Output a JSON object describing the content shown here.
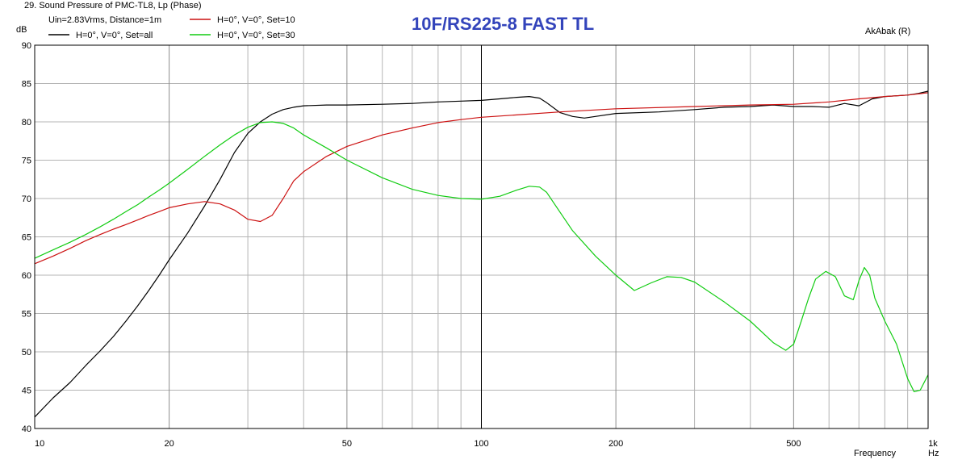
{
  "window_title": "29. Sound Pressure of PMC-TL8, Lp (Phase)",
  "overlay_title": "10F/RS225-8 FAST TL",
  "watermark": "AkAbak (R)",
  "legend": {
    "conditions": "Uin=2.83Vrms, Distance=1m"
  },
  "chart_data": {
    "type": "line",
    "title": "10F/RS225-8 FAST TL",
    "xlabel": "Frequency",
    "xunit": "Hz",
    "yunit": "dB",
    "xscale": "log",
    "xlim": [
      10,
      1000
    ],
    "ylim": [
      40,
      90
    ],
    "grid": true,
    "legend_position": "top-left",
    "x_ticks": [
      10,
      20,
      50,
      100,
      200,
      500,
      1000
    ],
    "x_tick_labels": [
      "10",
      "20",
      "50",
      "100",
      "200",
      "500",
      "1k"
    ],
    "x_minor": [
      30,
      40,
      60,
      70,
      80,
      90,
      300,
      400,
      600,
      700,
      800,
      900
    ],
    "y_ticks": [
      40,
      45,
      50,
      55,
      60,
      65,
      70,
      75,
      80,
      85,
      90
    ],
    "y_tick_labels": [
      "40",
      "45",
      "50",
      "55",
      "60",
      "65",
      "70",
      "75",
      "80",
      "85",
      "90"
    ],
    "series": [
      {
        "name": "H=0°, V=0°, Set=all",
        "color": "#000000",
        "points": [
          [
            10,
            41.5
          ],
          [
            11,
            44
          ],
          [
            12,
            46
          ],
          [
            13,
            48.2
          ],
          [
            14,
            50.1
          ],
          [
            15,
            52
          ],
          [
            16,
            54
          ],
          [
            17,
            56
          ],
          [
            18,
            58
          ],
          [
            19,
            60
          ],
          [
            20,
            62
          ],
          [
            22,
            65.5
          ],
          [
            24,
            69
          ],
          [
            26,
            72.5
          ],
          [
            28,
            76
          ],
          [
            30,
            78.5
          ],
          [
            32,
            80
          ],
          [
            34,
            81
          ],
          [
            36,
            81.6
          ],
          [
            38,
            81.9
          ],
          [
            40,
            82.1
          ],
          [
            45,
            82.2
          ],
          [
            50,
            82.2
          ],
          [
            60,
            82.3
          ],
          [
            70,
            82.4
          ],
          [
            80,
            82.6
          ],
          [
            90,
            82.7
          ],
          [
            100,
            82.8
          ],
          [
            110,
            83
          ],
          [
            120,
            83.2
          ],
          [
            128,
            83.3
          ],
          [
            135,
            83.1
          ],
          [
            140,
            82.5
          ],
          [
            150,
            81.2
          ],
          [
            160,
            80.7
          ],
          [
            170,
            80.5
          ],
          [
            180,
            80.7
          ],
          [
            200,
            81.1
          ],
          [
            250,
            81.3
          ],
          [
            300,
            81.6
          ],
          [
            350,
            81.9
          ],
          [
            400,
            82
          ],
          [
            450,
            82.2
          ],
          [
            500,
            82
          ],
          [
            550,
            82
          ],
          [
            600,
            81.9
          ],
          [
            650,
            82.4
          ],
          [
            700,
            82.1
          ],
          [
            750,
            83
          ],
          [
            800,
            83.3
          ],
          [
            900,
            83.5
          ],
          [
            950,
            83.7
          ],
          [
            1000,
            84
          ]
        ]
      },
      {
        "name": "H=0°, V=0°, Set=10",
        "color": "#cc1111",
        "points": [
          [
            10,
            61.5
          ],
          [
            11,
            62.5
          ],
          [
            12,
            63.5
          ],
          [
            13,
            64.5
          ],
          [
            14,
            65.3
          ],
          [
            15,
            66
          ],
          [
            16,
            66.6
          ],
          [
            17,
            67.2
          ],
          [
            18,
            67.8
          ],
          [
            19,
            68.3
          ],
          [
            20,
            68.8
          ],
          [
            22,
            69.3
          ],
          [
            24,
            69.6
          ],
          [
            26,
            69.3
          ],
          [
            28,
            68.5
          ],
          [
            30,
            67.3
          ],
          [
            32,
            67
          ],
          [
            34,
            67.8
          ],
          [
            36,
            70
          ],
          [
            38,
            72.3
          ],
          [
            40,
            73.5
          ],
          [
            45,
            75.5
          ],
          [
            50,
            76.8
          ],
          [
            60,
            78.3
          ],
          [
            70,
            79.2
          ],
          [
            80,
            79.9
          ],
          [
            90,
            80.3
          ],
          [
            100,
            80.6
          ],
          [
            120,
            80.9
          ],
          [
            150,
            81.3
          ],
          [
            200,
            81.7
          ],
          [
            300,
            82
          ],
          [
            400,
            82.2
          ],
          [
            500,
            82.3
          ],
          [
            600,
            82.6
          ],
          [
            700,
            83
          ],
          [
            800,
            83.3
          ],
          [
            900,
            83.5
          ],
          [
            1000,
            83.8
          ]
        ]
      },
      {
        "name": "H=0°, V=0°, Set=30",
        "color": "#11cc11",
        "points": [
          [
            10,
            62.2
          ],
          [
            11,
            63.3
          ],
          [
            12,
            64.3
          ],
          [
            13,
            65.3
          ],
          [
            14,
            66.3
          ],
          [
            15,
            67.3
          ],
          [
            16,
            68.3
          ],
          [
            17,
            69.2
          ],
          [
            18,
            70.2
          ],
          [
            19,
            71.1
          ],
          [
            20,
            72
          ],
          [
            22,
            73.8
          ],
          [
            24,
            75.5
          ],
          [
            26,
            77
          ],
          [
            28,
            78.3
          ],
          [
            30,
            79.3
          ],
          [
            32,
            79.9
          ],
          [
            34,
            80
          ],
          [
            36,
            79.8
          ],
          [
            38,
            79.2
          ],
          [
            40,
            78.3
          ],
          [
            45,
            76.6
          ],
          [
            50,
            75
          ],
          [
            60,
            72.7
          ],
          [
            70,
            71.2
          ],
          [
            80,
            70.4
          ],
          [
            90,
            70
          ],
          [
            100,
            69.9
          ],
          [
            110,
            70.3
          ],
          [
            120,
            71.1
          ],
          [
            128,
            71.6
          ],
          [
            135,
            71.5
          ],
          [
            140,
            70.8
          ],
          [
            150,
            68.2
          ],
          [
            160,
            65.8
          ],
          [
            180,
            62.5
          ],
          [
            200,
            60
          ],
          [
            220,
            58
          ],
          [
            240,
            59
          ],
          [
            260,
            59.8
          ],
          [
            280,
            59.7
          ],
          [
            300,
            59.1
          ],
          [
            350,
            56.5
          ],
          [
            400,
            54
          ],
          [
            450,
            51.2
          ],
          [
            480,
            50.2
          ],
          [
            500,
            51
          ],
          [
            520,
            54
          ],
          [
            540,
            57
          ],
          [
            560,
            59.5
          ],
          [
            590,
            60.5
          ],
          [
            620,
            59.8
          ],
          [
            650,
            57.3
          ],
          [
            680,
            56.8
          ],
          [
            700,
            59.3
          ],
          [
            720,
            61
          ],
          [
            740,
            60
          ],
          [
            760,
            57
          ],
          [
            800,
            54
          ],
          [
            850,
            51
          ],
          [
            900,
            46.5
          ],
          [
            930,
            44.8
          ],
          [
            960,
            45
          ],
          [
            1000,
            47
          ]
        ]
      }
    ]
  }
}
